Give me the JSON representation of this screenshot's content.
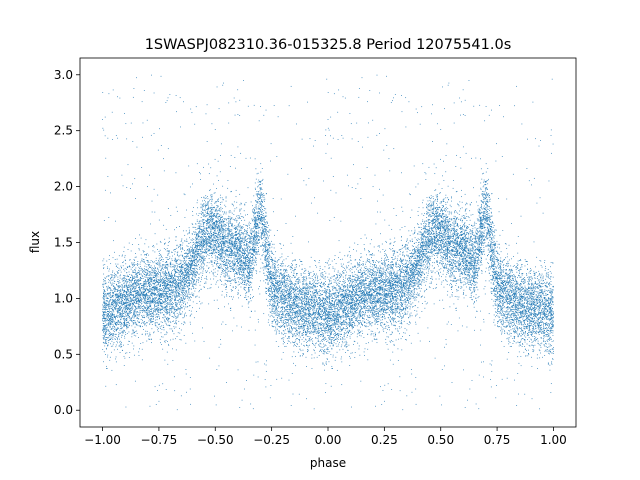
{
  "chart_data": {
    "type": "scatter",
    "title": "1SWASPJ082310.36-015325.8 Period 12075541.0s",
    "xlabel": "phase",
    "ylabel": "flux",
    "xlim": [
      -1.1,
      1.1
    ],
    "ylim": [
      -0.15,
      3.15
    ],
    "x_ticks": [
      -1.0,
      -0.75,
      -0.5,
      -0.25,
      0.0,
      0.25,
      0.5,
      0.75,
      1.0
    ],
    "x_tick_labels": [
      "−1.00",
      "−0.75",
      "−0.50",
      "−0.25",
      "0.00",
      "0.25",
      "0.50",
      "0.75",
      "1.00"
    ],
    "y_ticks": [
      0.0,
      0.5,
      1.0,
      1.5,
      2.0,
      2.5,
      3.0
    ],
    "y_tick_labels": [
      "0.0",
      "0.5",
      "1.0",
      "1.5",
      "2.0",
      "2.5",
      "3.0"
    ],
    "point_color": "#1f77b4",
    "grid": false,
    "phase_profile": {
      "phase": [
        0.0,
        0.05,
        0.1,
        0.15,
        0.2,
        0.25,
        0.3,
        0.35,
        0.4,
        0.45,
        0.5,
        0.55,
        0.6,
        0.65,
        0.7,
        0.75,
        0.8,
        0.85,
        0.9,
        0.95,
        1.0
      ],
      "flux": [
        0.85,
        0.9,
        0.95,
        1.05,
        1.05,
        1.05,
        1.05,
        1.15,
        1.3,
        1.55,
        1.6,
        1.45,
        1.45,
        1.3,
        1.8,
        1.1,
        1.0,
        0.95,
        0.9,
        0.9,
        0.85
      ]
    },
    "approx_point_count": 20000
  }
}
